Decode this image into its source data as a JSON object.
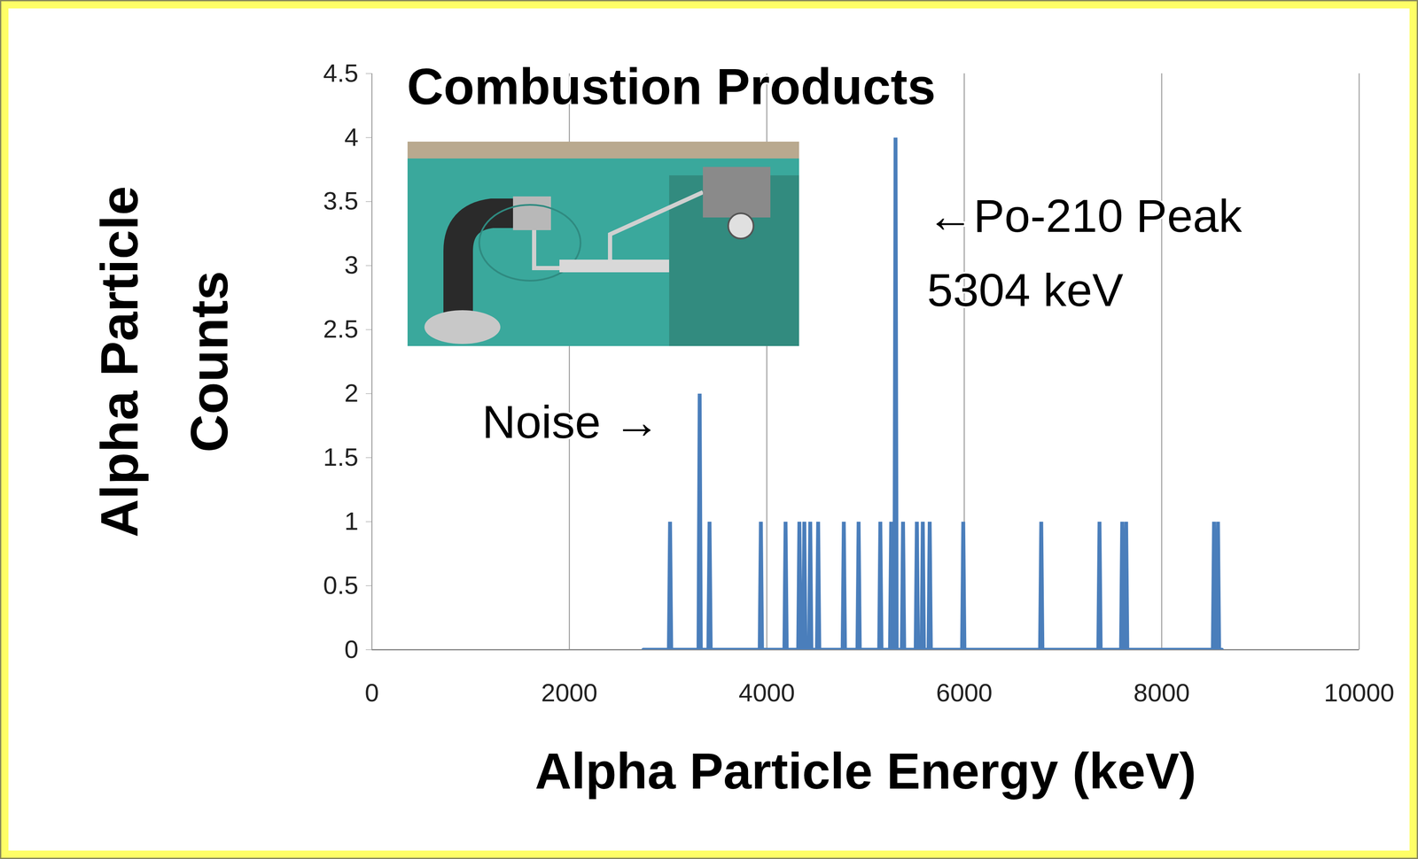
{
  "chart_data": {
    "type": "line",
    "title": "Combustion Products",
    "x_label": "Alpha Particle Energy (keV)",
    "y_label": "Alpha Particle Counts",
    "x": [
      2750,
      3008,
      3020,
      3032,
      3308,
      3320,
      3332,
      3408,
      3420,
      3432,
      3928,
      3940,
      3952,
      4178,
      4190,
      4202,
      4318,
      4330,
      4342,
      4368,
      4380,
      4392,
      4428,
      4440,
      4452,
      4508,
      4520,
      4532,
      4768,
      4780,
      4792,
      4918,
      4930,
      4942,
      5138,
      5150,
      5162,
      5248,
      5260,
      5272,
      5292,
      5304,
      5316,
      5368,
      5380,
      5392,
      5508,
      5520,
      5532,
      5568,
      5580,
      5592,
      5638,
      5650,
      5662,
      5978,
      5990,
      6002,
      6768,
      6780,
      6792,
      7358,
      7370,
      7382,
      7588,
      7600,
      7612,
      7628,
      7640,
      7652,
      8518,
      8530,
      8542,
      8558,
      8570,
      8582,
      8610
    ],
    "values": [
      0,
      0,
      1,
      0,
      0,
      2,
      0,
      0,
      1,
      0,
      0,
      1,
      0,
      0,
      1,
      0,
      0,
      1,
      0,
      0,
      1,
      0,
      0,
      1,
      0,
      0,
      1,
      0,
      0,
      1,
      0,
      0,
      1,
      0,
      0,
      1,
      0,
      0,
      1,
      0,
      0,
      4,
      0,
      0,
      1,
      0,
      0,
      1,
      0,
      0,
      1,
      0,
      0,
      1,
      0,
      0,
      1,
      0,
      0,
      1,
      0,
      0,
      1,
      0,
      0,
      1,
      0,
      0,
      1,
      0,
      0,
      1,
      0,
      0,
      1,
      0,
      0
    ],
    "color": "#4a7ebb",
    "xlim": [
      0,
      10000
    ],
    "xticks": [
      0,
      2000,
      4000,
      6000,
      8000,
      10000
    ],
    "ylim": [
      0,
      4.5
    ],
    "yticks": [
      0,
      0.5,
      1,
      1.5,
      2,
      2.5,
      3,
      3.5,
      4,
      4.5
    ],
    "grid": "x",
    "annotations": [
      "←Po-210 Peak\n5304 keV",
      "Noise →"
    ]
  }
}
